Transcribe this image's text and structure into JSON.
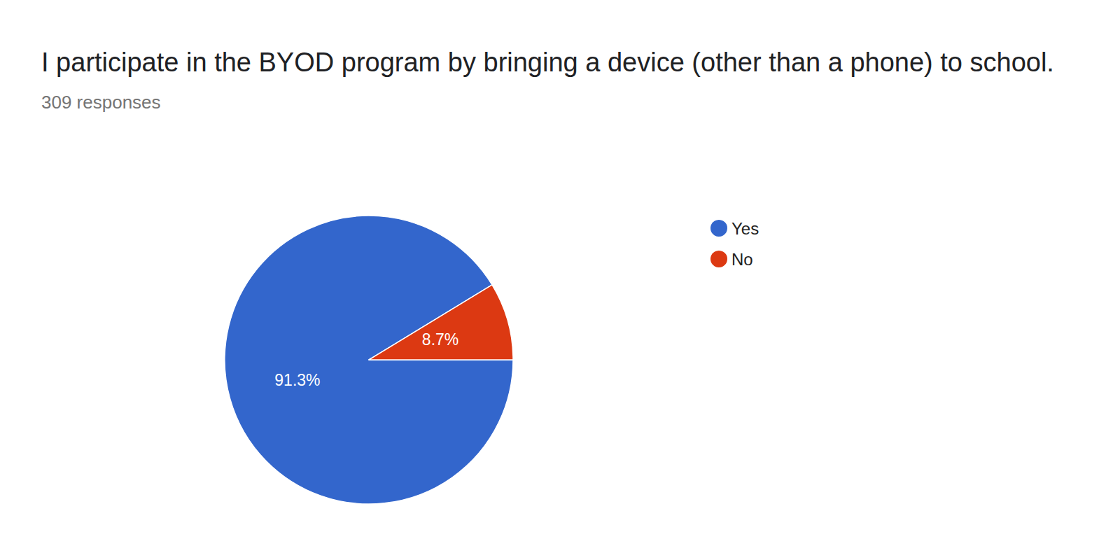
{
  "chart_data": {
    "type": "pie",
    "title": "I participate in the BYOD program by bringing a device (other than a phone) to school.",
    "subtitle": "309 responses",
    "categories": [
      "Yes",
      "No"
    ],
    "values": [
      91.3,
      8.7
    ],
    "value_labels": [
      "91.3%",
      "8.7%"
    ],
    "colors": [
      "#3366cc",
      "#dc3912"
    ],
    "data_labels": true,
    "legend": "right"
  }
}
